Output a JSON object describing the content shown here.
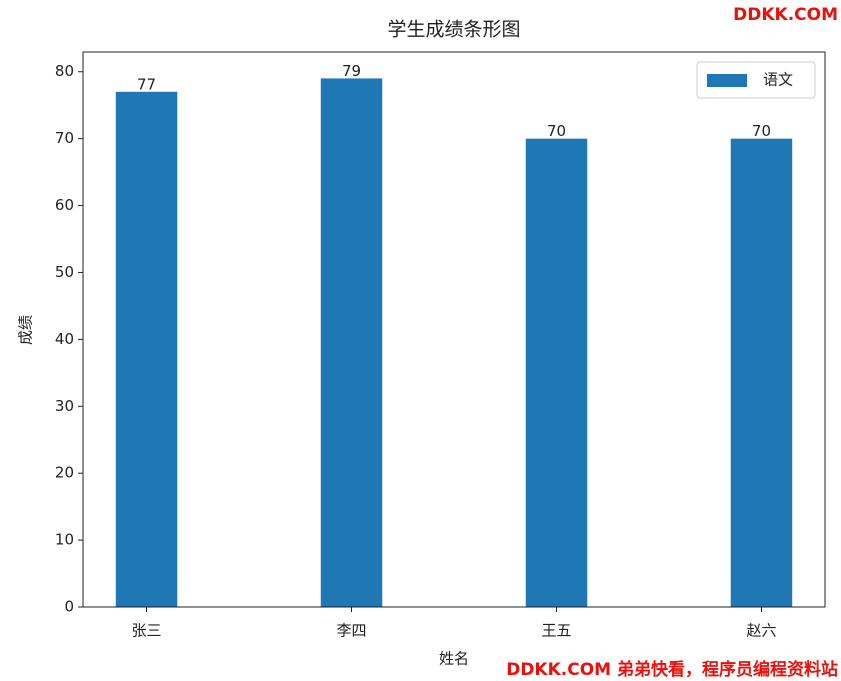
{
  "chart_data": {
    "type": "bar",
    "title": "学生成绩条形图",
    "x_label": "姓名",
    "y_label": "成绩",
    "categories": [
      "张三",
      "李四",
      "王五",
      "赵六"
    ],
    "series": [
      {
        "name": "语文",
        "color": "#1f77b4",
        "values": [
          77,
          79,
          70,
          70
        ]
      }
    ],
    "ylim": [
      0,
      82.95
    ],
    "yticks": [
      0,
      10,
      20,
      30,
      40,
      50,
      60,
      70,
      80
    ],
    "legend": "upper right",
    "grid": false
  },
  "watermarks": {
    "top": "DDKK.COM",
    "bottom": "DDKK.COM 弟弟快看，程序员编程资料站"
  }
}
